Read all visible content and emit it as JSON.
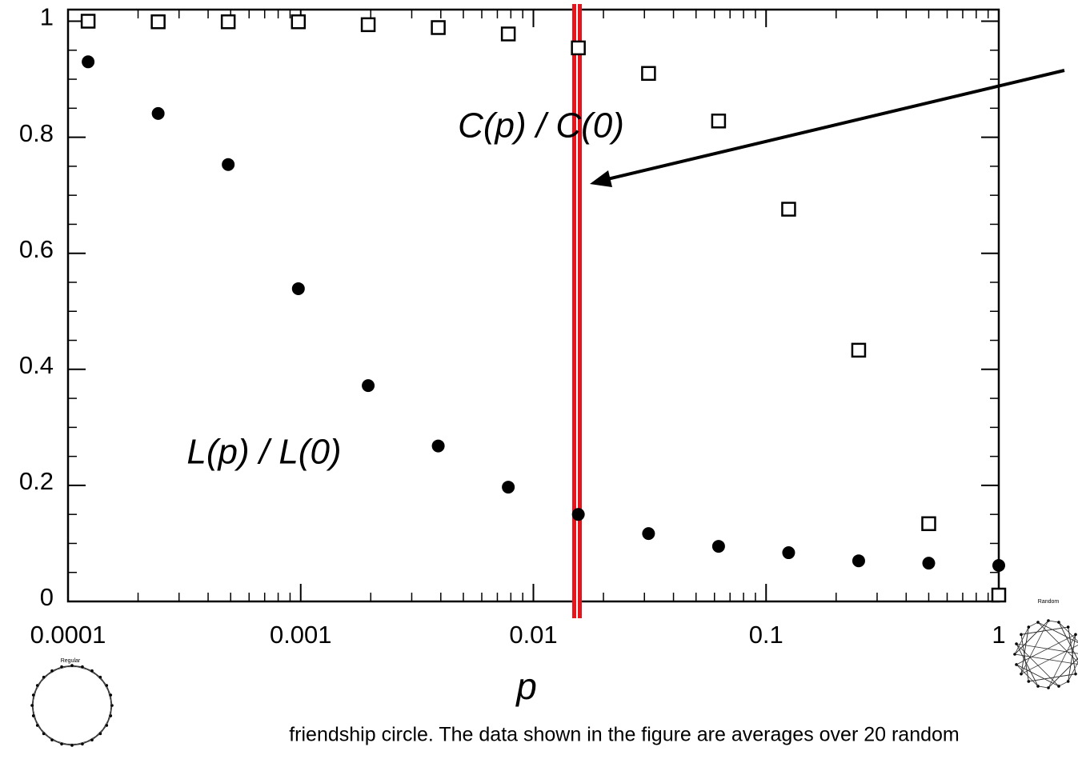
{
  "chart_data": {
    "type": "scatter",
    "log_x": true,
    "xlabel": "p",
    "annotations": [
      "C(p) / C(0)",
      "L(p) / L(0)"
    ],
    "caption": "friendship circle. The data shown in the figure are averages over 20 random",
    "icon_labels": [
      "Regular",
      "Random"
    ],
    "xlim": [
      0.0001,
      1
    ],
    "xticks": [
      0.0001,
      0.001,
      0.01,
      0.1,
      1
    ],
    "ylim": [
      0,
      1.02
    ],
    "yticks": [
      0,
      0.2,
      0.4,
      0.6,
      0.8,
      1
    ],
    "series": [
      {
        "name": "C(p) / C(0)",
        "marker": "square",
        "color": "#000000",
        "x": [
          0.000122,
          0.000244,
          0.000488,
          0.000977,
          0.00195,
          0.0039,
          0.0078,
          0.0156,
          0.03125,
          0.0625,
          0.125,
          0.25,
          0.5,
          1
        ],
        "values": [
          1.0,
          0.999,
          0.999,
          0.999,
          0.994,
          0.989,
          0.978,
          0.954,
          0.91,
          0.828,
          0.676,
          0.433,
          0.134,
          0.011
        ]
      },
      {
        "name": "L(p) / L(0)",
        "marker": "circle",
        "color": "#000000",
        "x": [
          0.000122,
          0.000244,
          0.000488,
          0.000977,
          0.00195,
          0.0039,
          0.0078,
          0.0156,
          0.03125,
          0.0625,
          0.125,
          0.25,
          0.5,
          1
        ],
        "values": [
          0.93,
          0.841,
          0.753,
          0.539,
          0.372,
          0.268,
          0.197,
          0.15,
          0.117,
          0.095,
          0.084,
          0.07,
          0.066,
          0.062
        ]
      }
    ]
  }
}
